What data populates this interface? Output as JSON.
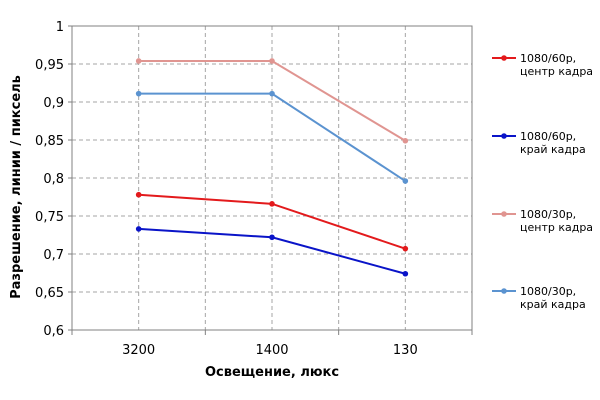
{
  "chart_data": {
    "type": "line",
    "title": "",
    "xlabel": "Освещение,  люкс",
    "ylabel": "Разрешение,  линии / пиксель",
    "categories": [
      "3200",
      "1400",
      "130"
    ],
    "ylim": [
      0.6,
      1.0
    ],
    "yticks": [
      0.6,
      0.65,
      0.7,
      0.75,
      0.8,
      0.85,
      0.9,
      0.95,
      1.0
    ],
    "ytick_labels": [
      "0,6",
      "0,65",
      "0,7",
      "0,75",
      "0,8",
      "0,85",
      "0,9",
      "0,95",
      "1"
    ],
    "grid": true,
    "legend_position": "right",
    "series": [
      {
        "name": "1080/60p, центр кадра",
        "label_lines": [
          "1080/60p,",
          "центр кадра"
        ],
        "color": "#e31a1c",
        "values": [
          0.778,
          0.766,
          0.707
        ]
      },
      {
        "name": "1080/60p, край кадра",
        "label_lines": [
          "1080/60p,",
          "край кадра"
        ],
        "color": "#0a14c8",
        "values": [
          0.733,
          0.722,
          0.674
        ]
      },
      {
        "name": "1080/30p, центр кадра",
        "label_lines": [
          "1080/30p,",
          "центр кадра"
        ],
        "color": "#e09591",
        "values": [
          0.954,
          0.954,
          0.849
        ]
      },
      {
        "name": "1080/30p, край кадра",
        "label_lines": [
          "1080/30p,",
          "край кадра"
        ],
        "color": "#5b93d0",
        "values": [
          0.911,
          0.911,
          0.796
        ]
      }
    ]
  }
}
